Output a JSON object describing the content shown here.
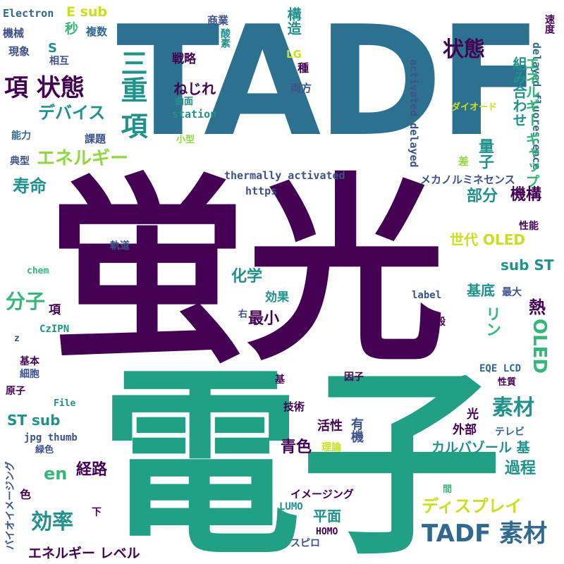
{
  "palette": {
    "purple": "#440154",
    "indigo": "#3b528b",
    "slate": "#31688e",
    "teal": "#21918c",
    "green": "#35b779",
    "lime": "#90d743",
    "yellow": "#c8e020"
  },
  "words": [
    {
      "id": "hikari-ei",
      "text": "蛍光",
      "color": "#440154"
    },
    {
      "id": "denshi",
      "text": "電子",
      "color": "#21a086"
    },
    {
      "id": "tadf-main",
      "text": "TADF",
      "color": "#2c7190"
    },
    {
      "id": "electron",
      "text": "Electron",
      "color": "#31688e"
    },
    {
      "id": "e-sub",
      "text": "E sub",
      "color": "#c8e020"
    },
    {
      "id": "byou",
      "text": "秒",
      "color": "#35b779"
    },
    {
      "id": "fukusuu",
      "text": "複数",
      "color": "#31688e"
    },
    {
      "id": "kikai",
      "text": "機械",
      "color": "#3b528b"
    },
    {
      "id": "genshou",
      "text": "現象",
      "color": "#3b528b"
    },
    {
      "id": "s",
      "text": "S",
      "color": "#21918c"
    },
    {
      "id": "sougo",
      "text": "相互",
      "color": "#3b528b"
    },
    {
      "id": "kou-joutai",
      "text": "項 状態",
      "color": "#440154"
    },
    {
      "id": "device",
      "text": "デバイス",
      "color": "#21918c"
    },
    {
      "id": "nouryoku",
      "text": "能力",
      "color": "#31688e"
    },
    {
      "id": "kadai",
      "text": "課題",
      "color": "#3b528b"
    },
    {
      "id": "tenkei",
      "text": "典型",
      "color": "#3b528b"
    },
    {
      "id": "energy",
      "text": "エネルギー",
      "color": "#90d743"
    },
    {
      "id": "jumyou",
      "text": "寿命",
      "color": "#21918c"
    },
    {
      "id": "sanjuu-kou",
      "text": "三重 項",
      "color": "#21918c"
    },
    {
      "id": "senryaku",
      "text": "戦略",
      "color": "#440154"
    },
    {
      "id": "nejire",
      "text": "ねじれ",
      "color": "#440154"
    },
    {
      "id": "station",
      "text": "station",
      "color": "#21918c"
    },
    {
      "id": "kyokumen",
      "text": "曲面",
      "color": "#21918c"
    },
    {
      "id": "kogata",
      "text": "小型",
      "color": "#90d743"
    },
    {
      "id": "shougyou",
      "text": "商業",
      "color": "#3b528b"
    },
    {
      "id": "sanso",
      "text": "酸素",
      "color": "#21918c"
    },
    {
      "id": "lg",
      "text": "LG",
      "color": "#c8e020"
    },
    {
      "id": "shu",
      "text": "種",
      "color": "#440154"
    },
    {
      "id": "kouzou",
      "text": "構造",
      "color": "#21918c"
    },
    {
      "id": "ryouhou",
      "text": "両方",
      "color": "#3b528b"
    },
    {
      "id": "joutai2",
      "text": "状態",
      "color": "#440154"
    },
    {
      "id": "activated",
      "text": "activated delayed",
      "color": "#3b528b"
    },
    {
      "id": "thermally",
      "text": "thermally activated",
      "color": "#3b528b"
    },
    {
      "id": "https",
      "text": "https",
      "color": "#3b528b"
    },
    {
      "id": "diode",
      "text": "ダイオード",
      "color": "#c8e020"
    },
    {
      "id": "kumiawase",
      "text": "組み合わせ",
      "color": "#21918c"
    },
    {
      "id": "delayed-fl",
      "text": "delayed fluorescence",
      "color": "#31688e"
    },
    {
      "id": "energy-gap",
      "text": "エネルギー ギャップ",
      "color": "#35b779"
    },
    {
      "id": "sokudo",
      "text": "速度",
      "color": "#440154"
    },
    {
      "id": "sa",
      "text": "差",
      "color": "#90d743"
    },
    {
      "id": "ryoushi",
      "text": "量子",
      "color": "#21918c"
    },
    {
      "id": "mechano",
      "text": "メカノルミネセンス",
      "color": "#3b528b"
    },
    {
      "id": "bubun",
      "text": "部分",
      "color": "#21918c"
    },
    {
      "id": "kikou",
      "text": "機構",
      "color": "#440154"
    },
    {
      "id": "seinou",
      "text": "性能",
      "color": "#440154"
    },
    {
      "id": "sedai-oled",
      "text": "世代 OLED",
      "color": "#c8e020"
    },
    {
      "id": "sub-st",
      "text": "sub ST",
      "color": "#21918c"
    },
    {
      "id": "kidou",
      "text": "軌道",
      "color": "#3b528b"
    },
    {
      "id": "chem",
      "text": "chem",
      "color": "#35b779"
    },
    {
      "id": "kagaku",
      "text": "化学",
      "color": "#21918c"
    },
    {
      "id": "kouka",
      "text": "効果",
      "color": "#21918c"
    },
    {
      "id": "saishou",
      "text": "最小",
      "color": "#440154"
    },
    {
      "id": "kitei",
      "text": "基底",
      "color": "#21918c"
    },
    {
      "id": "saidai",
      "text": "最大",
      "color": "#3b528b"
    },
    {
      "id": "label",
      "text": "label",
      "color": "#3b528b"
    },
    {
      "id": "netsu",
      "text": "熱",
      "color": "#440154"
    },
    {
      "id": "rin",
      "text": "リン",
      "color": "#35b779"
    },
    {
      "id": "oled",
      "text": "OLED",
      "color": "#35b779"
    },
    {
      "id": "bunshi",
      "text": "分子",
      "color": "#35b779"
    },
    {
      "id": "kou2",
      "text": "項",
      "color": "#440154"
    },
    {
      "id": "migi",
      "text": "右",
      "color": "#3b528b"
    },
    {
      "id": "ippan",
      "text": "一般",
      "color": "#440154"
    },
    {
      "id": "z",
      "text": "z",
      "color": "#3b528b"
    },
    {
      "id": "czipn",
      "text": "CzIPN",
      "color": "#21918c"
    },
    {
      "id": "kihon",
      "text": "基本",
      "color": "#440154"
    },
    {
      "id": "saibou",
      "text": "細胞",
      "color": "#3b528b"
    },
    {
      "id": "genshi",
      "text": "原子",
      "color": "#440154"
    },
    {
      "id": "file",
      "text": "File",
      "color": "#21918c"
    },
    {
      "id": "motoi",
      "text": "基",
      "color": "#440154"
    },
    {
      "id": "inshi",
      "text": "因子",
      "color": "#440154"
    },
    {
      "id": "eqe-lcd",
      "text": "EQE LCD",
      "color": "#31688e"
    },
    {
      "id": "seishitsu",
      "text": "性質",
      "color": "#440154"
    },
    {
      "id": "gijutsu",
      "text": "技術",
      "color": "#440154"
    },
    {
      "id": "st-sub",
      "text": "ST sub",
      "color": "#21918c"
    },
    {
      "id": "jpg-thumb",
      "text": "jpg thumb",
      "color": "#3b528b"
    },
    {
      "id": "ryokushoku",
      "text": "緑色",
      "color": "#3b528b"
    },
    {
      "id": "kassei",
      "text": "活性",
      "color": "#440154"
    },
    {
      "id": "yuuki",
      "text": "有機",
      "color": "#3b528b"
    },
    {
      "id": "riron",
      "text": "理論",
      "color": "#c8e020"
    },
    {
      "id": "sozai",
      "text": "素材",
      "color": "#21918c"
    },
    {
      "id": "hikari",
      "text": "光",
      "color": "#440154"
    },
    {
      "id": "gaibu",
      "text": "外部",
      "color": "#440154"
    },
    {
      "id": "terebi",
      "text": "テレビ",
      "color": "#31688e"
    },
    {
      "id": "carbazole",
      "text": "カルバゾール 基",
      "color": "#21918c"
    },
    {
      "id": "seishoku",
      "text": "青色",
      "color": "#440154"
    },
    {
      "id": "en",
      "text": "en",
      "color": "#35b779"
    },
    {
      "id": "keiro",
      "text": "経路",
      "color": "#440154"
    },
    {
      "id": "katei",
      "text": "過程",
      "color": "#21918c"
    },
    {
      "id": "bio-imaging",
      "text": "バイオイメージング",
      "color": "#3b528b"
    },
    {
      "id": "iro",
      "text": "色",
      "color": "#440154"
    },
    {
      "id": "kouritsu",
      "text": "効率",
      "color": "#21918c"
    },
    {
      "id": "shita",
      "text": "下",
      "color": "#440154"
    },
    {
      "id": "imaging",
      "text": "イメージング",
      "color": "#440154"
    },
    {
      "id": "lumo",
      "text": "LUMO",
      "color": "#21918c"
    },
    {
      "id": "heimen",
      "text": "平面",
      "color": "#21918c"
    },
    {
      "id": "ma",
      "text": "間",
      "color": "#35b779"
    },
    {
      "id": "display",
      "text": "ディスプレイ",
      "color": "#c8e020"
    },
    {
      "id": "tadf-sozai",
      "text": "TADF 素材",
      "color": "#31688e"
    },
    {
      "id": "homo",
      "text": "HOMO",
      "color": "#440154"
    },
    {
      "id": "spiro",
      "text": "スピロ",
      "color": "#3b528b"
    },
    {
      "id": "energy-level",
      "text": "エネルギー レベル",
      "color": "#440154"
    }
  ]
}
